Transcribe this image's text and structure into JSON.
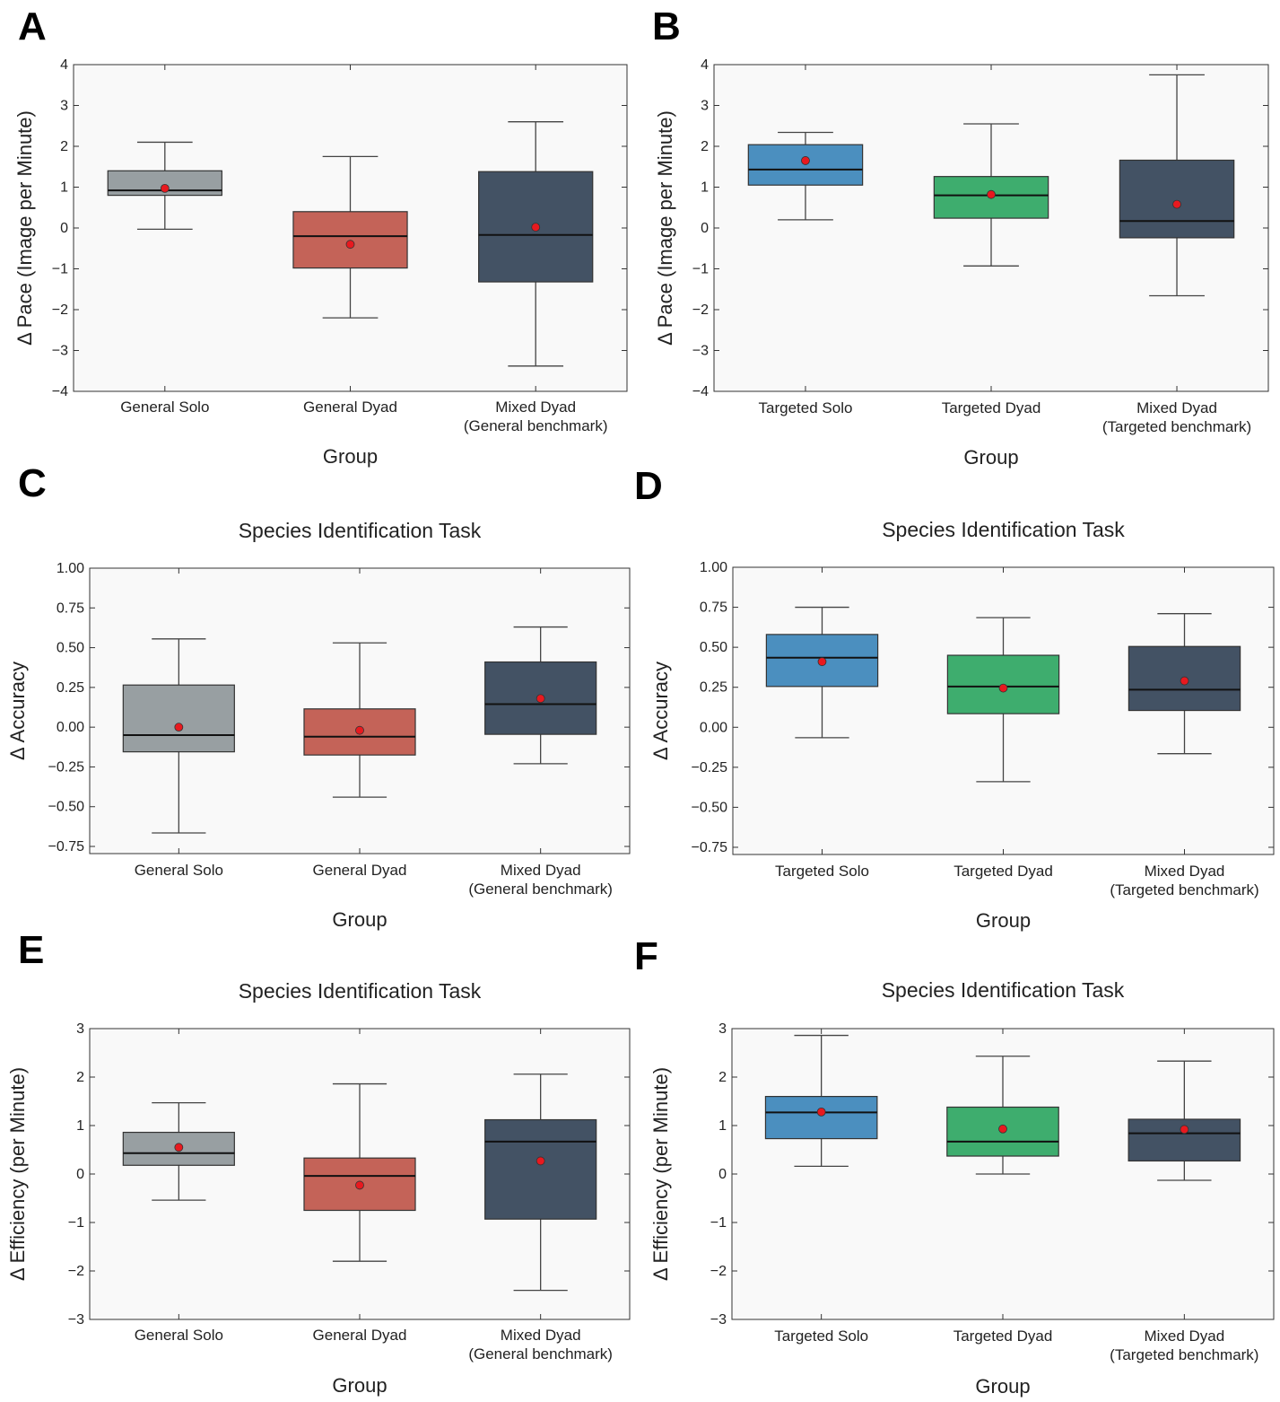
{
  "chart_data": [
    {
      "panel": "A",
      "type": "box",
      "title": "",
      "xlabel": "Group",
      "ylabel": "Δ Pace (Image per Minute)",
      "ylim": [
        -4,
        4
      ],
      "yticks": [
        "−4",
        "−3",
        "−2",
        "−1",
        "0",
        "1",
        "2",
        "3",
        "4"
      ],
      "ytick_values": [
        -4,
        -3,
        -2,
        -1,
        0,
        1,
        2,
        3,
        4
      ],
      "categories": [
        {
          "line1": "General Solo",
          "line2": ""
        },
        {
          "line1": "General Dyad",
          "line2": ""
        },
        {
          "line1": "Mixed Dyad",
          "line2": "(General benchmark)"
        }
      ],
      "boxes": [
        {
          "min": -0.03,
          "q1": 0.8,
          "median": 0.92,
          "q3": 1.4,
          "max": 2.1,
          "mean": 0.97,
          "color": "#989fa2"
        },
        {
          "min": -2.2,
          "q1": -0.98,
          "median": -0.2,
          "q3": 0.4,
          "max": 1.75,
          "mean": -0.4,
          "color": "#c46358"
        },
        {
          "min": -3.38,
          "q1": -1.32,
          "median": -0.17,
          "q3": 1.38,
          "max": 2.6,
          "mean": 0.02,
          "color": "#435264"
        }
      ]
    },
    {
      "panel": "B",
      "type": "box",
      "title": "",
      "xlabel": "Group",
      "ylabel": "Δ Pace (Image per Minute)",
      "ylim": [
        -4,
        4
      ],
      "yticks": [
        "−4",
        "−3",
        "−2",
        "−1",
        "0",
        "1",
        "2",
        "3",
        "4"
      ],
      "ytick_values": [
        -4,
        -3,
        -2,
        -1,
        0,
        1,
        2,
        3,
        4
      ],
      "categories": [
        {
          "line1": "Targeted Solo",
          "line2": ""
        },
        {
          "line1": "Targeted Dyad",
          "line2": ""
        },
        {
          "line1": "Mixed Dyad",
          "line2": "(Targeted benchmark)"
        }
      ],
      "boxes": [
        {
          "min": 0.2,
          "q1": 1.05,
          "median": 1.43,
          "q3": 2.04,
          "max": 2.34,
          "mean": 1.65,
          "color": "#4b8fbf"
        },
        {
          "min": -0.93,
          "q1": 0.24,
          "median": 0.8,
          "q3": 1.26,
          "max": 2.55,
          "mean": 0.82,
          "color": "#3ead6e"
        },
        {
          "min": -1.66,
          "q1": -0.24,
          "median": 0.17,
          "q3": 1.66,
          "max": 3.75,
          "mean": 0.58,
          "color": "#435264"
        }
      ]
    },
    {
      "panel": "C",
      "type": "box",
      "title": "Species Identification Task",
      "xlabel": "Group",
      "ylabel": "Δ Accuracy",
      "ylim": [
        -0.795,
        1.0
      ],
      "yticks": [
        "−0.75",
        "−0.50",
        "−0.25",
        "0.00",
        "0.25",
        "0.50",
        "0.75",
        "1.00"
      ],
      "ytick_values": [
        -0.75,
        -0.5,
        -0.25,
        0,
        0.25,
        0.5,
        0.75,
        1.0
      ],
      "categories": [
        {
          "line1": "General Solo",
          "line2": ""
        },
        {
          "line1": "General Dyad",
          "line2": ""
        },
        {
          "line1": "Mixed Dyad",
          "line2": "(General benchmark)"
        }
      ],
      "boxes": [
        {
          "min": -0.665,
          "q1": -0.155,
          "median": -0.05,
          "q3": 0.265,
          "max": 0.555,
          "mean": 0.0,
          "color": "#989fa2"
        },
        {
          "min": -0.44,
          "q1": -0.175,
          "median": -0.06,
          "q3": 0.115,
          "max": 0.53,
          "mean": -0.02,
          "color": "#c46358"
        },
        {
          "min": -0.23,
          "q1": -0.045,
          "median": 0.145,
          "q3": 0.41,
          "max": 0.63,
          "mean": 0.18,
          "color": "#435264"
        }
      ]
    },
    {
      "panel": "D",
      "type": "box",
      "title": "Species Identification Task",
      "xlabel": "Group",
      "ylabel": "Δ Accuracy",
      "ylim": [
        -0.795,
        1.0
      ],
      "yticks": [
        "−0.75",
        "−0.50",
        "−0.25",
        "0.00",
        "0.25",
        "0.50",
        "0.75",
        "1.00"
      ],
      "ytick_values": [
        -0.75,
        -0.5,
        -0.25,
        0,
        0.25,
        0.5,
        0.75,
        1.0
      ],
      "categories": [
        {
          "line1": "Targeted Solo",
          "line2": ""
        },
        {
          "line1": "Targeted Dyad",
          "line2": ""
        },
        {
          "line1": "Mixed Dyad",
          "line2": "(Targeted benchmark)"
        }
      ],
      "boxes": [
        {
          "min": -0.065,
          "q1": 0.255,
          "median": 0.435,
          "q3": 0.58,
          "max": 0.75,
          "mean": 0.41,
          "color": "#4b8fbf"
        },
        {
          "min": -0.34,
          "q1": 0.085,
          "median": 0.255,
          "q3": 0.45,
          "max": 0.685,
          "mean": 0.245,
          "color": "#3ead6e"
        },
        {
          "min": -0.165,
          "q1": 0.105,
          "median": 0.235,
          "q3": 0.505,
          "max": 0.71,
          "mean": 0.29,
          "color": "#435264"
        }
      ]
    },
    {
      "panel": "E",
      "type": "box",
      "title": "Species Identification Task",
      "xlabel": "Group",
      "ylabel": "Δ Efficiency (per Minute)",
      "ylim": [
        -3,
        3
      ],
      "yticks": [
        "−3",
        "−2",
        "−1",
        "0",
        "1",
        "2",
        "3"
      ],
      "ytick_values": [
        -3,
        -2,
        -1,
        0,
        1,
        2,
        3
      ],
      "categories": [
        {
          "line1": "General Solo",
          "line2": ""
        },
        {
          "line1": "General Dyad",
          "line2": ""
        },
        {
          "line1": "Mixed Dyad",
          "line2": "(General benchmark)"
        }
      ],
      "boxes": [
        {
          "min": -0.54,
          "q1": 0.18,
          "median": 0.43,
          "q3": 0.86,
          "max": 1.47,
          "mean": 0.55,
          "color": "#989fa2"
        },
        {
          "min": -1.8,
          "q1": -0.75,
          "median": -0.04,
          "q3": 0.33,
          "max": 1.86,
          "mean": -0.23,
          "color": "#c46358"
        },
        {
          "min": -2.4,
          "q1": -0.93,
          "median": 0.67,
          "q3": 1.12,
          "max": 2.06,
          "mean": 0.27,
          "color": "#435264"
        }
      ]
    },
    {
      "panel": "F",
      "type": "box",
      "title": "Species Identification Task",
      "xlabel": "Group",
      "ylabel": "Δ Efficiency (per Minute)",
      "ylim": [
        -3,
        3
      ],
      "yticks": [
        "−3",
        "−2",
        "−1",
        "0",
        "1",
        "2",
        "3"
      ],
      "ytick_values": [
        -3,
        -2,
        -1,
        0,
        1,
        2,
        3
      ],
      "categories": [
        {
          "line1": "Targeted Solo",
          "line2": ""
        },
        {
          "line1": "Targeted Dyad",
          "line2": ""
        },
        {
          "line1": "Mixed Dyad",
          "line2": "(Targeted benchmark)"
        }
      ],
      "boxes": [
        {
          "min": 0.16,
          "q1": 0.73,
          "median": 1.27,
          "q3": 1.6,
          "max": 2.86,
          "mean": 1.28,
          "color": "#4b8fbf"
        },
        {
          "min": 0.0,
          "q1": 0.37,
          "median": 0.67,
          "q3": 1.38,
          "max": 2.43,
          "mean": 0.93,
          "color": "#3ead6e"
        },
        {
          "min": -0.13,
          "q1": 0.27,
          "median": 0.84,
          "q3": 1.13,
          "max": 2.33,
          "mean": 0.92,
          "color": "#435264"
        }
      ]
    }
  ],
  "style": {
    "plot_bg": "#f9f9f9",
    "mean_color": "#e8191f",
    "whisker_color": "#444444",
    "median_color": "#111111"
  }
}
